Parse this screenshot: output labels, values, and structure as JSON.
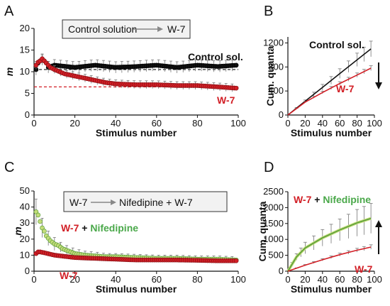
{
  "colors": {
    "control": "#111111",
    "w7": "#d21f26",
    "w7_text": "#b3141c",
    "nifedipine": "#4aa84a",
    "nife_fill": "#c4dc7a",
    "nife_line": "#5a9e3a",
    "error": "#777777",
    "box_arrow": "#888888"
  },
  "panels": [
    {
      "letter": "A",
      "box": {
        "left_text": "Control solution",
        "right_text": "W-7",
        "arrow_icon": "right-arrow-icon"
      },
      "annotations": [
        {
          "text": "Control sol.",
          "color": "control"
        },
        {
          "text": "W-7",
          "color": "w7"
        }
      ]
    },
    {
      "letter": "B",
      "annotations": [
        {
          "text": "Control sol.",
          "color": "control"
        },
        {
          "text": "W-7",
          "color": "w7"
        }
      ],
      "arrow_icon": "down-arrow-icon"
    },
    {
      "letter": "C",
      "box": {
        "left_text": "W-7",
        "right_text": "Nifedipine + W-7",
        "arrow_icon": "right-arrow-icon"
      },
      "annotations": [
        {
          "parts": [
            {
              "text": "W-7",
              "color": "w7"
            },
            {
              "text": " + ",
              "color": "control"
            },
            {
              "text": "Nifedipine",
              "color": "nifedipine"
            }
          ]
        },
        {
          "text": "W-7",
          "color": "w7"
        }
      ]
    },
    {
      "letter": "D",
      "annotations": [
        {
          "parts": [
            {
              "text": "W-7",
              "color": "w7"
            },
            {
              "text": " + ",
              "color": "control"
            },
            {
              "text": "Nifedipine",
              "color": "nifedipine"
            }
          ]
        },
        {
          "text": "W-7",
          "color": "w7"
        }
      ],
      "arrow_icon": "up-arrow-icon"
    }
  ],
  "chart_data": [
    {
      "panel": "A",
      "type": "scatter",
      "xlabel": "Stimulus number",
      "ylabel": "m",
      "xlim": [
        0,
        100
      ],
      "ylim": [
        0,
        20
      ],
      "xticks": [
        0,
        20,
        40,
        60,
        80,
        100
      ],
      "yticks": [
        0,
        5,
        10,
        15,
        20
      ],
      "reference_lines": [
        {
          "series": "Control sol.",
          "y": 10.5,
          "style": "dashed"
        },
        {
          "series": "W-7",
          "y": 6.5,
          "style": "dashed"
        }
      ],
      "series": [
        {
          "name": "Control sol.",
          "x": [
            1,
            2,
            3,
            4,
            5,
            6,
            7,
            10,
            20,
            30,
            40,
            50,
            60,
            70,
            80,
            90,
            99
          ],
          "y": [
            10.5,
            12.0,
            12.5,
            12.8,
            12.5,
            12.0,
            11.0,
            11.5,
            11.0,
            11.5,
            11.0,
            11.2,
            11.5,
            11.0,
            11.5,
            11.2,
            11.5
          ],
          "error": 1.3
        },
        {
          "name": "W-7",
          "x": [
            1,
            2,
            3,
            4,
            5,
            6,
            7,
            8,
            10,
            15,
            20,
            25,
            30,
            35,
            40,
            50,
            60,
            70,
            80,
            90,
            99
          ],
          "y": [
            11.5,
            12.2,
            12.5,
            13.0,
            12.5,
            12.0,
            11.5,
            11.0,
            10.5,
            9.5,
            9.0,
            8.5,
            8.0,
            7.5,
            7.2,
            7.0,
            7.0,
            6.8,
            6.8,
            6.5,
            6.2
          ],
          "error": 0.9
        }
      ]
    },
    {
      "panel": "B",
      "type": "line",
      "xlabel": "Stimulus number",
      "ylabel": "Cum. quanta",
      "xlim": [
        0,
        100
      ],
      "ylim": [
        0,
        1300
      ],
      "xticks": [
        0,
        20,
        40,
        60,
        80,
        100
      ],
      "yticks": [
        0,
        400,
        800,
        1200
      ],
      "series": [
        {
          "name": "Control sol.",
          "x": [
            0,
            20,
            40,
            60,
            80,
            96
          ],
          "y": [
            0,
            230,
            460,
            690,
            920,
            1100
          ],
          "error": [
            0,
            20,
            50,
            80,
            110,
            130
          ]
        },
        {
          "name": "W-7",
          "x": [
            0,
            20,
            40,
            60,
            80,
            96
          ],
          "y": [
            0,
            215,
            375,
            525,
            665,
            780
          ],
          "error": [
            0,
            10,
            20,
            30,
            35,
            40
          ]
        }
      ]
    },
    {
      "panel": "C",
      "type": "scatter",
      "xlabel": "Stimulus number",
      "ylabel": "m",
      "xlim": [
        0,
        100
      ],
      "ylim": [
        0,
        50
      ],
      "xticks": [
        0,
        20,
        40,
        60,
        80,
        100
      ],
      "yticks": [
        0,
        10,
        20,
        30,
        40,
        50
      ],
      "series": [
        {
          "name": "W-7 + Nifedipine",
          "x": [
            1,
            2,
            3,
            4,
            5,
            6,
            8,
            10,
            12,
            14,
            16,
            18,
            20,
            25,
            30,
            35,
            40,
            50,
            60,
            70,
            80,
            90,
            99
          ],
          "y": [
            37,
            35,
            31,
            27,
            25,
            22,
            19,
            17,
            16,
            14,
            13,
            12,
            11,
            10,
            9.5,
            9,
            9,
            8.5,
            8,
            8,
            7.5,
            7.5,
            7
          ],
          "error": [
            8,
            8,
            7,
            6,
            5,
            5,
            4,
            4,
            3,
            3,
            3,
            3,
            3,
            2.5,
            2.5,
            2,
            2,
            2,
            2,
            2,
            2,
            2,
            2
          ]
        },
        {
          "name": "W-7",
          "x": [
            1,
            2,
            3,
            5,
            10,
            20,
            30,
            40,
            50,
            60,
            70,
            80,
            90,
            99
          ],
          "y": [
            11,
            12,
            12,
            11.5,
            10,
            8.5,
            8,
            7.5,
            7,
            7,
            7,
            6.8,
            6.5,
            6.5
          ],
          "error": 1
        }
      ]
    },
    {
      "panel": "D",
      "type": "line",
      "xlabel": "Stimulus number",
      "ylabel": "Cum. quanta",
      "xlim": [
        0,
        100
      ],
      "ylim": [
        0,
        2500
      ],
      "xticks": [
        0,
        20,
        40,
        60,
        80,
        100
      ],
      "yticks": [
        0,
        500,
        1000,
        1500,
        2000,
        2500
      ],
      "series": [
        {
          "name": "W-7 + Nifedipine",
          "x": [
            0,
            10,
            20,
            40,
            60,
            80,
            96
          ],
          "y": [
            0,
            450,
            730,
            1050,
            1300,
            1520,
            1660
          ],
          "error": [
            0,
            100,
            180,
            260,
            340,
            420,
            470
          ]
        },
        {
          "name": "W-7",
          "x": [
            0,
            20,
            40,
            60,
            80,
            96
          ],
          "y": [
            0,
            190,
            360,
            520,
            660,
            760
          ],
          "error": [
            0,
            20,
            35,
            50,
            60,
            70
          ]
        }
      ]
    }
  ]
}
